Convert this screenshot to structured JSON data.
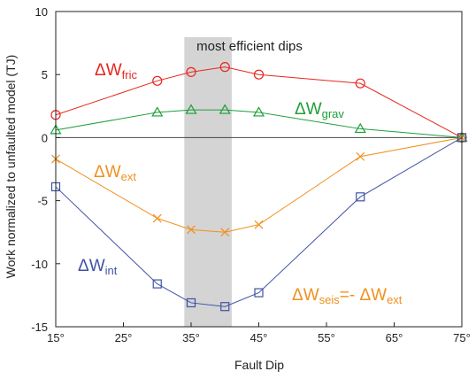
{
  "chart_data": {
    "type": "line",
    "xlabel": "Fault Dip",
    "ylabel": "Work normalized to unfaulted model (TJ)",
    "xlim": [
      15,
      75
    ],
    "ylim": [
      -15,
      10
    ],
    "x_ticks": [
      "15°",
      "25°",
      "35°",
      "45°",
      "55°",
      "65°",
      "75°"
    ],
    "y_ticks": [
      "10",
      "5",
      "0",
      "-5",
      "-10",
      "-15"
    ],
    "highlight": {
      "label": "most efficient dips",
      "x_range": [
        34,
        41
      ]
    },
    "annotation": {
      "lhs_main": "ΔW",
      "lhs_sub": "seis",
      "rhs_main": "=- ΔW",
      "rhs_sub": "ext",
      "color": "#f0901e"
    },
    "series": [
      {
        "name_main": "ΔW",
        "name_sub": "fric",
        "color": "#e8251c",
        "marker": "circle",
        "x": [
          15,
          30,
          35,
          40,
          45,
          60,
          75
        ],
        "y": [
          1.8,
          4.5,
          5.2,
          5.6,
          5.0,
          4.3,
          0.0
        ]
      },
      {
        "name_main": "ΔW",
        "name_sub": "grav",
        "color": "#1e9e3a",
        "marker": "triangle",
        "x": [
          15,
          30,
          35,
          40,
          45,
          60,
          75
        ],
        "y": [
          0.6,
          2.0,
          2.2,
          2.2,
          2.0,
          0.7,
          0.0
        ]
      },
      {
        "name_main": "ΔW",
        "name_sub": "ext",
        "color": "#f0901e",
        "marker": "x",
        "x": [
          15,
          30,
          35,
          40,
          45,
          60,
          75
        ],
        "y": [
          -1.7,
          -6.4,
          -7.3,
          -7.5,
          -6.9,
          -1.5,
          0.0
        ]
      },
      {
        "name_main": "ΔW",
        "name_sub": "int",
        "color": "#3f52a6",
        "marker": "square",
        "x": [
          15,
          30,
          35,
          40,
          45,
          60,
          75
        ],
        "y": [
          -3.9,
          -11.6,
          -13.1,
          -13.4,
          -12.3,
          -4.7,
          0.0
        ]
      }
    ]
  }
}
